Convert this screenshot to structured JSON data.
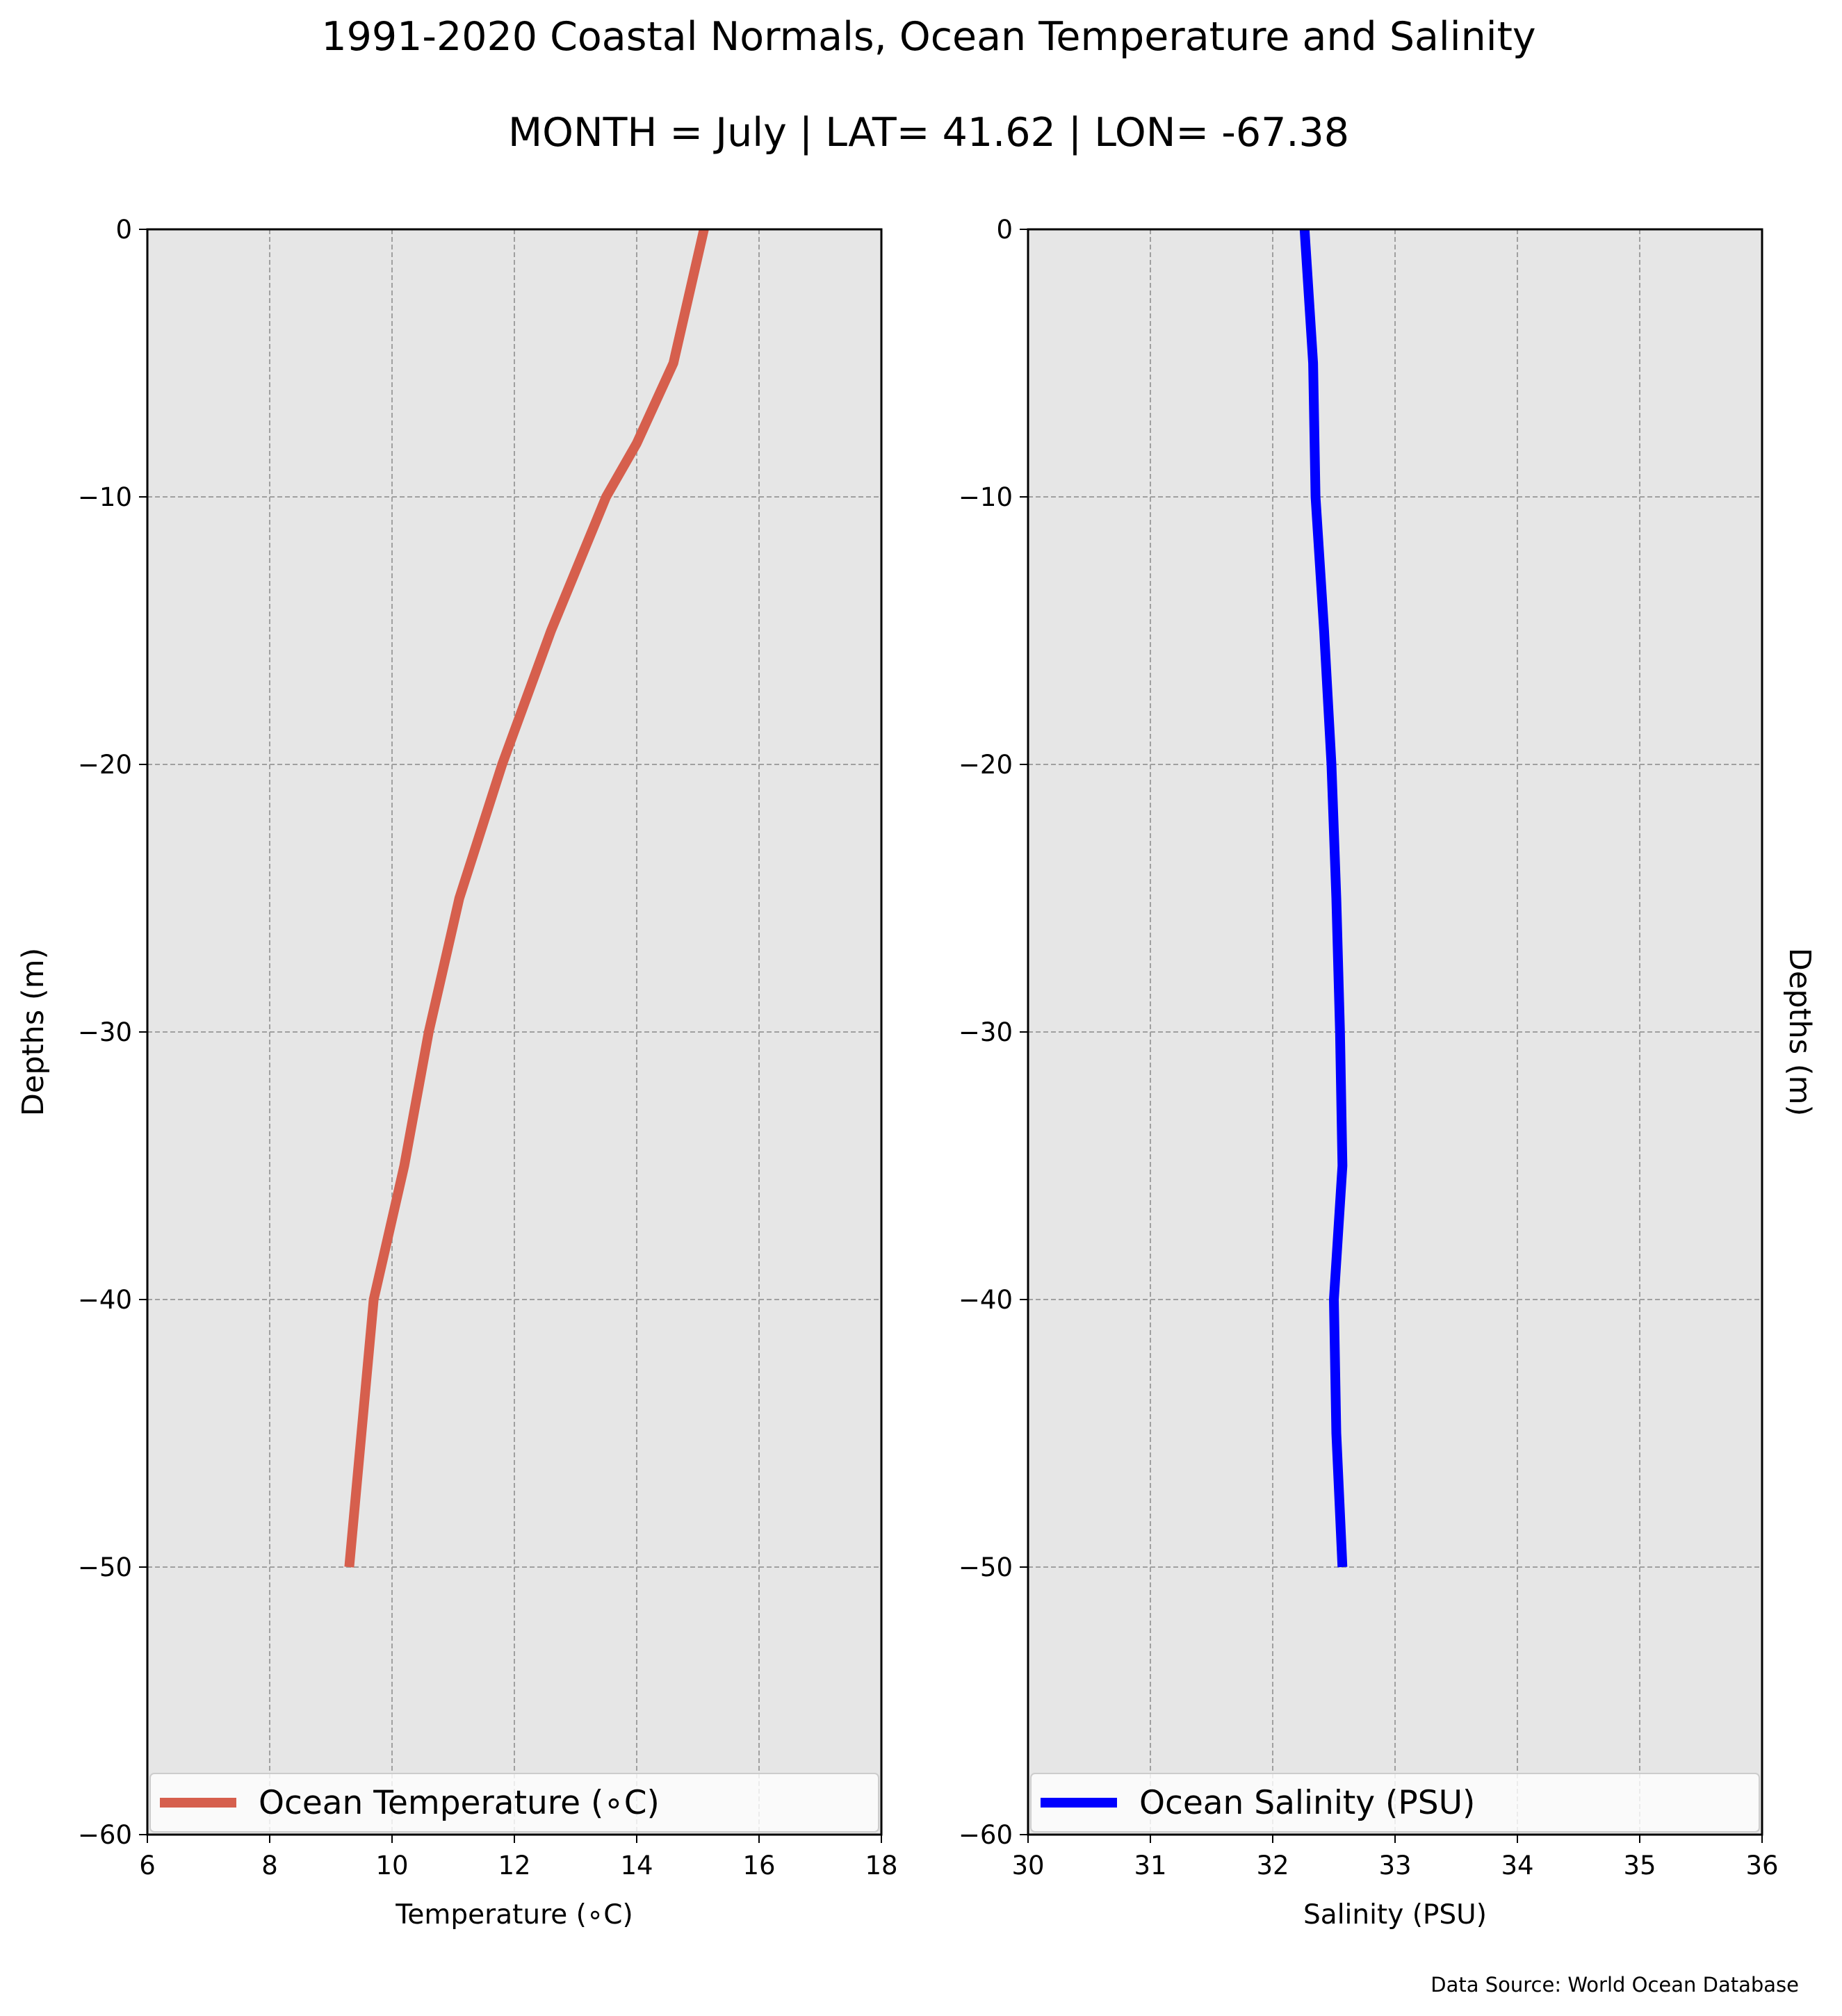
{
  "figure": {
    "title": "1991-2020 Coastal Normals, Ocean Temperature and Salinity",
    "subtitle": "MONTH = July | LAT= 41.62 | LON= -67.38",
    "source": "Data Source: World Ocean Database"
  },
  "chart_data": [
    {
      "type": "line",
      "xlabel": "Temperature ($^\\circ$C)",
      "xlabel_display": "Temperature (∘C)",
      "ylabel": "Depths (m)",
      "xlim": [
        6,
        18
      ],
      "ylim": [
        -60,
        0
      ],
      "xticks": [
        6,
        8,
        10,
        12,
        14,
        16,
        18
      ],
      "yticks": [
        0,
        -10,
        -20,
        -30,
        -40,
        -50,
        -60
      ],
      "grid": true,
      "legend_position": "bottom",
      "series": [
        {
          "name": "Ocean Temperature (∘C)",
          "color": "#d65f4d",
          "x": [
            15.1,
            14.6,
            14.0,
            13.5,
            12.6,
            11.8,
            11.1,
            10.6,
            10.2,
            9.7,
            9.5,
            9.3
          ],
          "y": [
            0,
            -5,
            -8,
            -10,
            -15,
            -20,
            -25,
            -30,
            -35,
            -40,
            -45,
            -50
          ]
        }
      ]
    },
    {
      "type": "line",
      "xlabel": "Salinity (PSU)",
      "ylabel": "Depths (m)",
      "xlim": [
        30,
        36
      ],
      "ylim": [
        -60,
        0
      ],
      "xticks": [
        30,
        31,
        32,
        33,
        34,
        35,
        36
      ],
      "yticks": [
        0,
        -10,
        -20,
        -30,
        -40,
        -50,
        -60
      ],
      "grid": true,
      "legend_position": "bottom",
      "series": [
        {
          "name": "Ocean Salinity (PSU)",
          "color": "#0000ff",
          "x": [
            32.26,
            32.33,
            32.35,
            32.42,
            32.48,
            32.52,
            32.55,
            32.57,
            32.5,
            32.52,
            32.57
          ],
          "y": [
            0,
            -5,
            -10,
            -15,
            -20,
            -25,
            -30,
            -35,
            -40,
            -45,
            -50
          ]
        }
      ]
    }
  ]
}
